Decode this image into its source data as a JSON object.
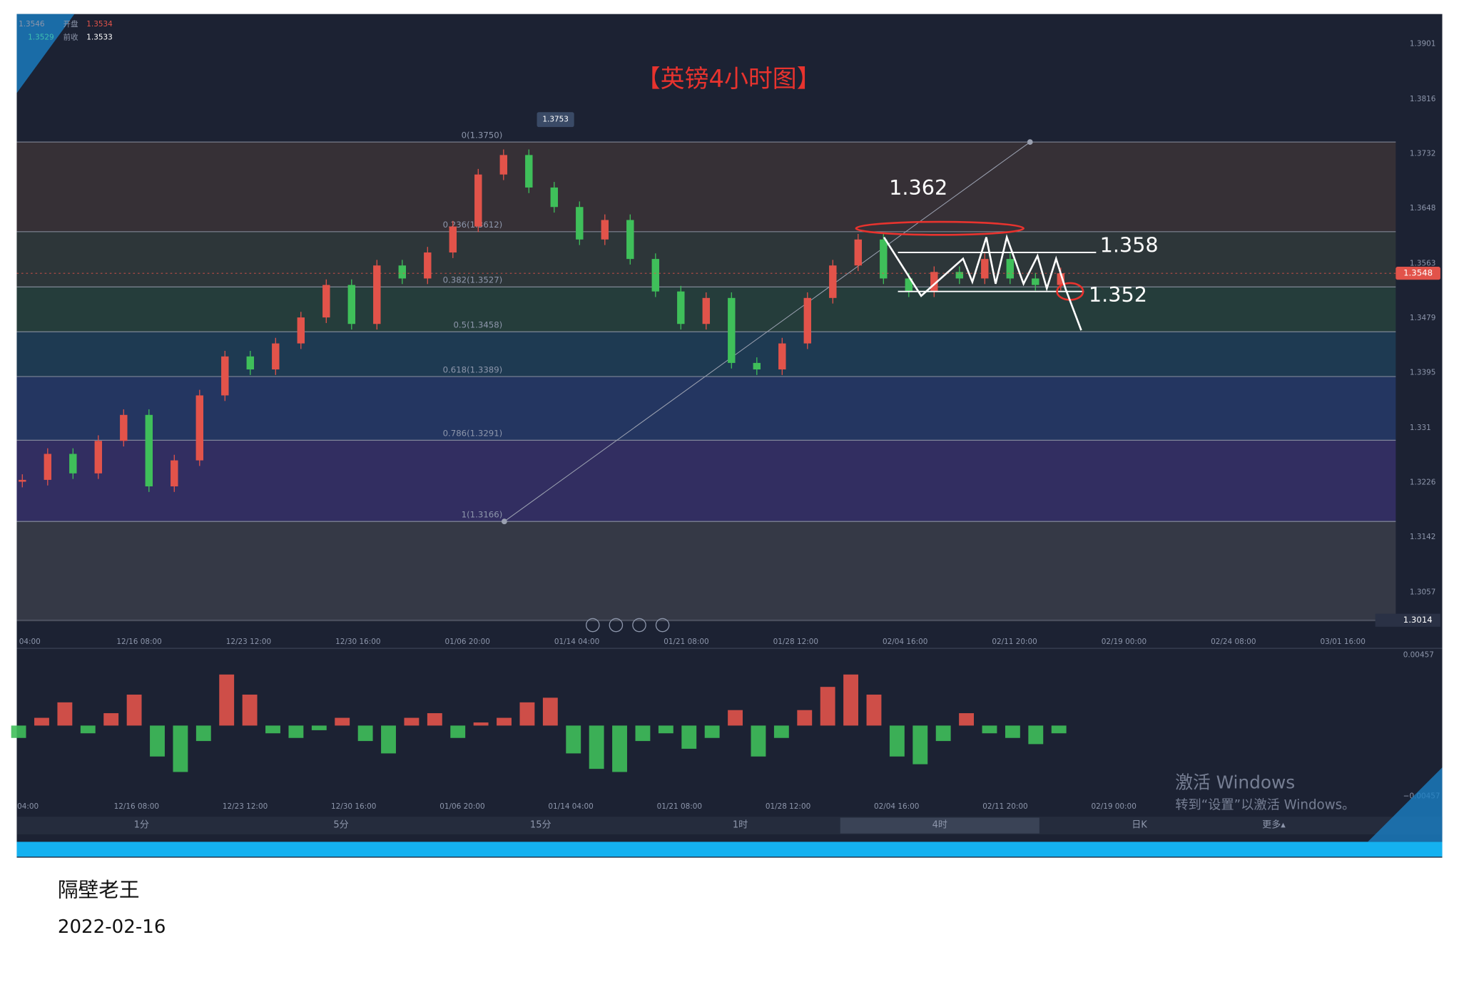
{
  "header": {
    "high": "1.3546",
    "open_label": "开盘",
    "open": "1.3534",
    "low": "1.3529",
    "prev_label": "前收",
    "prev": "1.3533"
  },
  "title": "【英镑4小时图】",
  "chart_data": [
    {
      "type": "candlestick",
      "values": [
        1.323,
        1.327,
        1.324,
        1.329,
        1.333,
        1.322,
        1.326,
        1.336,
        1.342,
        1.34,
        1.344,
        1.348,
        1.353,
        1.347,
        1.356,
        1.354,
        1.358,
        1.362,
        1.37,
        1.373,
        1.368,
        1.365,
        1.36,
        1.363,
        1.357,
        1.352,
        1.347,
        1.351,
        1.341,
        1.34,
        1.344,
        1.351,
        1.356,
        1.36,
        1.354,
        1.352,
        1.355,
        1.354,
        1.357,
        1.354,
        1.353,
        1.3548
      ],
      "up_color": "#e2534a",
      "down_color": "#3fbf5a",
      "ylim": [
        1.2995,
        1.3947
      ],
      "yticks": [
        1.3901,
        1.3816,
        1.3732,
        1.3648,
        1.3563,
        1.3479,
        1.3395,
        1.331,
        1.3226,
        1.3142,
        1.3057
      ],
      "fib_levels": [
        {
          "value": 1.375,
          "label": "0(1.3750)"
        },
        {
          "value": 1.3612,
          "label": "0.236(1.3612)"
        },
        {
          "value": 1.3527,
          "label": "0.382(1.3527)"
        },
        {
          "value": 1.3458,
          "label": "0.5(1.3458)"
        },
        {
          "value": 1.3389,
          "label": "0.618(1.3389)"
        },
        {
          "value": 1.3291,
          "label": "0.786(1.3291)"
        },
        {
          "value": 1.3166,
          "label": "1(1.3166)"
        }
      ],
      "x_labels": [
        "04:00",
        "12/16 08:00",
        "12/23 12:00",
        "12/30 16:00",
        "01/06 20:00",
        "01/14 04:00",
        "01/21 08:00",
        "01/28 12:00",
        "02/04 16:00",
        "02/11 20:00",
        "02/19 00:00",
        "02/24 08:00",
        "03/01 16:00"
      ],
      "peak": 1.3753,
      "last_price": 1.3548,
      "alert_price": 1.3014,
      "annotations": [
        1.362,
        1.358,
        1.352
      ]
    },
    {
      "type": "bar",
      "name": "MACD",
      "values": [
        -0.0008,
        0.0005,
        0.0015,
        -0.0005,
        0.0008,
        0.002,
        -0.002,
        -0.003,
        -0.001,
        0.0033,
        0.002,
        -0.0005,
        -0.0008,
        -0.0003,
        0.0005,
        -0.001,
        -0.0018,
        0.0005,
        0.0008,
        -0.0008,
        0.0002,
        0.0005,
        0.0015,
        0.0018,
        -0.0018,
        -0.0028,
        -0.003,
        -0.001,
        -0.0005,
        -0.0015,
        -0.0008,
        0.001,
        -0.002,
        -0.0008,
        0.001,
        0.0025,
        0.0033,
        0.002,
        -0.002,
        -0.0025,
        -0.001,
        0.0008,
        -0.0005,
        -0.0008,
        -0.0012,
        -0.0005
      ],
      "up_color": "#e2534a",
      "down_color": "#3fbf5a",
      "ylim": [
        -0.00457,
        0.00457
      ],
      "yticks": [
        0.00457,
        {
          "value": -0.00457,
          "label": "−0.00457"
        }
      ],
      "x_labels": [
        "04:00",
        "12/16 08:00",
        "12/23 12:00",
        "12/30 16:00",
        "01/06 20:00",
        "01/14 04:00",
        "01/21 08:00",
        "01/28 12:00",
        "02/04 16:00",
        "02/11 20:00",
        "02/19 00:00"
      ]
    }
  ],
  "tabs": [
    "1分",
    "5分",
    "15分",
    "1时",
    "4时",
    "日K",
    "更多▴"
  ],
  "watermark": {
    "title": "激活 Windows",
    "subtitle": "转到“设置”以激活 Windows。"
  },
  "footer": {
    "author": "隔壁老王",
    "date": "2022-02-16"
  }
}
